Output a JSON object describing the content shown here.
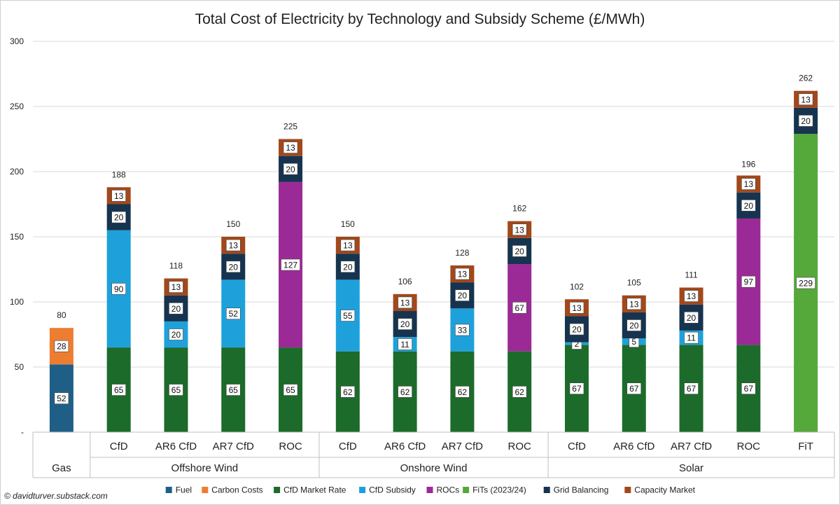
{
  "chart_data": {
    "type": "bar",
    "stacked": true,
    "title": "Total Cost of Electricity by Technology and Subsidy Scheme (£/MWh)",
    "ylim": [
      0,
      300
    ],
    "yticks": [
      "-",
      "50",
      "100",
      "150",
      "200",
      "250",
      "300"
    ],
    "grid": true,
    "legend_position": "bottom",
    "groups": [
      "Gas",
      "Offshore Wind",
      "Onshore Wind",
      "Solar"
    ],
    "categories": [
      {
        "group": "Gas",
        "label": ""
      },
      {
        "group": "Offshore Wind",
        "label": "CfD"
      },
      {
        "group": "Offshore Wind",
        "label": "AR6 CfD"
      },
      {
        "group": "Offshore Wind",
        "label": "AR7 CfD"
      },
      {
        "group": "Offshore Wind",
        "label": "ROC"
      },
      {
        "group": "Onshore Wind",
        "label": "CfD"
      },
      {
        "group": "Onshore Wind",
        "label": "AR6 CfD"
      },
      {
        "group": "Onshore Wind",
        "label": "AR7 CfD"
      },
      {
        "group": "Onshore Wind",
        "label": "ROC"
      },
      {
        "group": "Solar",
        "label": "CfD"
      },
      {
        "group": "Solar",
        "label": "AR6 CfD"
      },
      {
        "group": "Solar",
        "label": "AR7 CfD"
      },
      {
        "group": "Solar",
        "label": "ROC"
      },
      {
        "group": "Solar",
        "label": "FiT"
      }
    ],
    "series": [
      {
        "name": "Fuel",
        "color": "#1f5f87",
        "values": [
          52,
          0,
          0,
          0,
          0,
          0,
          0,
          0,
          0,
          0,
          0,
          0,
          0,
          0
        ]
      },
      {
        "name": "Carbon Costs",
        "color": "#ed7d31",
        "values": [
          28,
          0,
          0,
          0,
          0,
          0,
          0,
          0,
          0,
          0,
          0,
          0,
          0,
          0
        ]
      },
      {
        "name": "CfD Market Rate",
        "color": "#1c6b2a",
        "values": [
          0,
          65,
          65,
          65,
          65,
          62,
          62,
          62,
          62,
          67,
          67,
          67,
          67,
          0
        ]
      },
      {
        "name": "CfD Subsidy",
        "color": "#1ea1db",
        "values": [
          0,
          90,
          20,
          52,
          0,
          55,
          11,
          33,
          0,
          2,
          5,
          11,
          0,
          0
        ]
      },
      {
        "name": "ROCs",
        "color": "#9c2a96",
        "values": [
          0,
          0,
          0,
          0,
          127,
          0,
          0,
          0,
          67,
          0,
          0,
          0,
          97,
          0
        ]
      },
      {
        "name": "FiTs (2023/24)",
        "color": "#55a83a",
        "values": [
          0,
          0,
          0,
          0,
          0,
          0,
          0,
          0,
          0,
          0,
          0,
          0,
          0,
          229
        ]
      },
      {
        "name": "Grid Balancing",
        "color": "#16344f",
        "values": [
          0,
          20,
          20,
          20,
          20,
          20,
          20,
          20,
          20,
          20,
          20,
          20,
          20,
          20
        ]
      },
      {
        "name": "Capacity Market",
        "color": "#a2481b",
        "values": [
          0,
          13,
          13,
          13,
          13,
          13,
          13,
          13,
          13,
          13,
          13,
          13,
          13,
          13
        ]
      }
    ],
    "totals": [
      80,
      188,
      118,
      150,
      225,
      150,
      106,
      128,
      162,
      102,
      105,
      111,
      196,
      262
    ]
  },
  "copyright": "© davidturver.substack.com"
}
